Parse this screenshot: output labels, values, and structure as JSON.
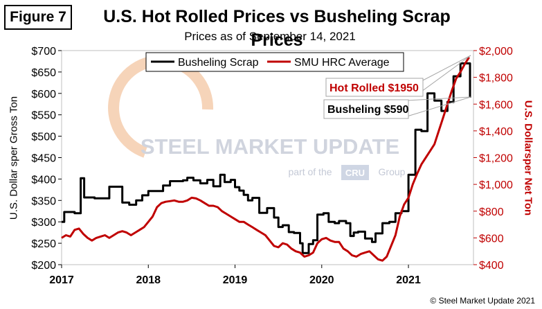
{
  "badge": "Figure 7",
  "footer": "© Steel Market Update 2021",
  "chart_data": {
    "type": "line",
    "title": "U.S. Hot Rolled Prices vs Busheling Scrap Prices",
    "subtitle": "Prices as of September 14, 2021",
    "ylabel_left": "U.S. Dollar sper Gross Ton",
    "ylabel_right": "U.S. Dollarsper Net Ton",
    "x_ticks": [
      "2017",
      "2018",
      "2019",
      "2020",
      "2021"
    ],
    "xlim": [
      2017.0,
      2021.75
    ],
    "left_axis": {
      "ylim": [
        200,
        700
      ],
      "ticks": [
        200,
        250,
        300,
        350,
        400,
        450,
        500,
        550,
        600,
        650,
        700
      ],
      "tick_labels": [
        "$200",
        "$250",
        "$300",
        "$350",
        "$400",
        "$450",
        "$500",
        "$550",
        "$600",
        "$650",
        "$700"
      ]
    },
    "right_axis": {
      "ylim": [
        400,
        2000
      ],
      "ticks": [
        400,
        600,
        800,
        1000,
        1200,
        1400,
        1600,
        1800,
        2000
      ],
      "tick_labels": [
        "$400",
        "$600",
        "$800",
        "$1,000",
        "$1,200",
        "$1,400",
        "$1,600",
        "$1,800",
        "$2,000"
      ],
      "color": "#c00000"
    },
    "legend": {
      "placement": "top-center",
      "entries": [
        "Busheling Scrap",
        "SMU HRC Average"
      ]
    },
    "series": [
      {
        "name": "Busheling Scrap",
        "axis": "left",
        "color": "#000000",
        "step": true,
        "x": [
          2017.0,
          2017.03,
          2017.15,
          2017.22,
          2017.26,
          2017.38,
          2017.55,
          2017.7,
          2017.78,
          2017.86,
          2017.93,
          2018.0,
          2018.1,
          2018.17,
          2018.25,
          2018.3,
          2018.4,
          2018.45,
          2018.52,
          2018.6,
          2018.68,
          2018.75,
          2018.83,
          2018.88,
          2018.95,
          2019.0,
          2019.05,
          2019.1,
          2019.15,
          2019.2,
          2019.28,
          2019.37,
          2019.45,
          2019.5,
          2019.55,
          2019.62,
          2019.68,
          2019.75,
          2019.78,
          2019.85,
          2019.9,
          2019.95,
          2020.02,
          2020.08,
          2020.15,
          2020.2,
          2020.28,
          2020.33,
          2020.37,
          2020.42,
          2020.5,
          2020.58,
          2020.62,
          2020.7,
          2020.78,
          2020.85,
          2020.92,
          2021.0,
          2021.08,
          2021.15,
          2021.22,
          2021.3,
          2021.38,
          2021.45,
          2021.52,
          2021.6,
          2021.66,
          2021.7,
          2021.71
        ],
        "values": [
          300,
          323,
          320,
          402,
          357,
          355,
          382,
          345,
          340,
          350,
          362,
          372,
          372,
          385,
          395,
          395,
          397,
          403,
          397,
          390,
          398,
          383,
          410,
          393,
          398,
          381,
          373,
          363,
          350,
          356,
          321,
          332,
          310,
          288,
          292,
          276,
          274,
          250,
          227,
          248,
          257,
          317,
          320,
          300,
          297,
          302,
          297,
          267,
          275,
          277,
          261,
          253,
          273,
          297,
          300,
          320,
          325,
          410,
          515,
          512,
          600,
          583,
          559,
          580,
          640,
          670,
          670,
          670,
          590
        ]
      },
      {
        "name": "SMU HRC Average",
        "axis": "right",
        "color": "#c00000",
        "step": false,
        "x": [
          2017.0,
          2017.05,
          2017.1,
          2017.15,
          2017.2,
          2017.25,
          2017.3,
          2017.35,
          2017.4,
          2017.45,
          2017.5,
          2017.55,
          2017.6,
          2017.65,
          2017.7,
          2017.75,
          2017.8,
          2017.85,
          2017.9,
          2017.95,
          2018.0,
          2018.05,
          2018.1,
          2018.15,
          2018.2,
          2018.25,
          2018.3,
          2018.35,
          2018.4,
          2018.45,
          2018.5,
          2018.55,
          2018.6,
          2018.65,
          2018.7,
          2018.75,
          2018.8,
          2018.85,
          2018.9,
          2018.95,
          2019.0,
          2019.05,
          2019.1,
          2019.15,
          2019.2,
          2019.25,
          2019.3,
          2019.35,
          2019.4,
          2019.45,
          2019.5,
          2019.55,
          2019.6,
          2019.65,
          2019.7,
          2019.75,
          2019.8,
          2019.85,
          2019.9,
          2019.95,
          2020.0,
          2020.05,
          2020.1,
          2020.15,
          2020.2,
          2020.25,
          2020.3,
          2020.35,
          2020.4,
          2020.45,
          2020.5,
          2020.55,
          2020.6,
          2020.65,
          2020.7,
          2020.75,
          2020.8,
          2020.85,
          2020.9,
          2020.95,
          2021.0,
          2021.05,
          2021.1,
          2021.15,
          2021.2,
          2021.25,
          2021.3,
          2021.35,
          2021.4,
          2021.45,
          2021.5,
          2021.55,
          2021.6,
          2021.65,
          2021.7
        ],
        "values": [
          600,
          620,
          610,
          660,
          670,
          630,
          600,
          580,
          600,
          610,
          620,
          600,
          620,
          640,
          650,
          640,
          620,
          640,
          660,
          680,
          720,
          760,
          830,
          860,
          870,
          875,
          880,
          870,
          870,
          880,
          900,
          895,
          880,
          860,
          840,
          840,
          830,
          800,
          780,
          760,
          740,
          720,
          720,
          700,
          680,
          660,
          640,
          620,
          580,
          540,
          530,
          560,
          550,
          520,
          500,
          490,
          460,
          470,
          490,
          560,
          590,
          600,
          580,
          570,
          570,
          520,
          500,
          470,
          460,
          480,
          490,
          500,
          470,
          440,
          430,
          460,
          540,
          620,
          760,
          850,
          900,
          1000,
          1080,
          1150,
          1200,
          1250,
          1300,
          1400,
          1500,
          1600,
          1700,
          1790,
          1840,
          1900,
          1950
        ]
      }
    ],
    "annotations": [
      {
        "text": "Hot Rolled $1950",
        "color": "#c00000",
        "series": "SMU HRC Average"
      },
      {
        "text": "Busheling $590",
        "color": "#000000",
        "series": "Busheling Scrap"
      }
    ],
    "watermark": {
      "main": "STEEL MARKET UPDATE",
      "sub_left": "part of the",
      "badge": "CRU",
      "sub_right": "Group"
    }
  }
}
